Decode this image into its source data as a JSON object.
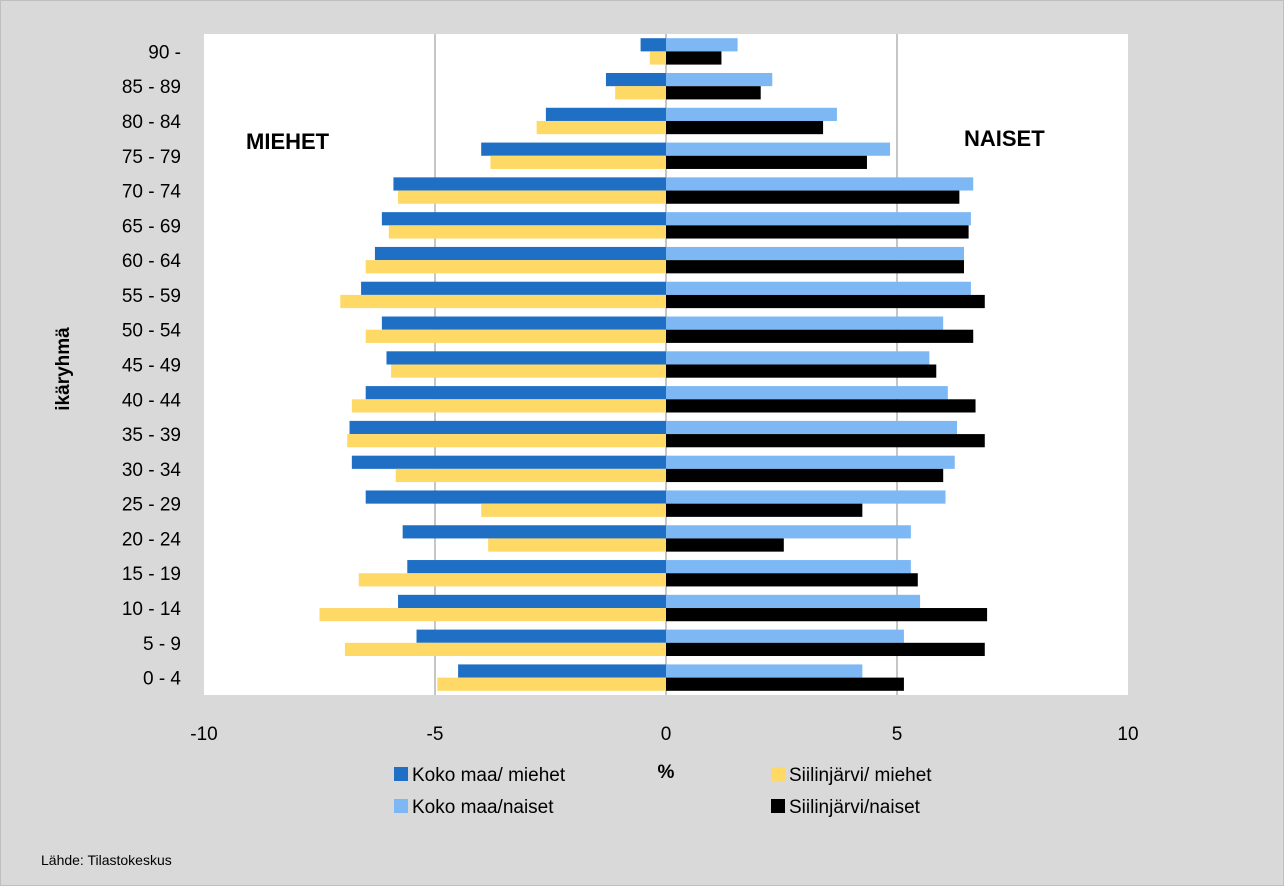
{
  "chart_data": {
    "type": "bar",
    "orientation": "horizontal",
    "categories": [
      "0 - 4",
      "5 - 9",
      "10 - 14",
      "15 - 19",
      "20 - 24",
      "25 - 29",
      "30 - 34",
      "35 - 39",
      "40 - 44",
      "45 - 49",
      "50 - 54",
      "55 - 59",
      "60 - 64",
      "65 - 69",
      "70 - 74",
      "75 - 79",
      "80 - 84",
      "85 - 89",
      "90 -"
    ],
    "series": [
      {
        "name": "Koko maa/ miehet",
        "color": "#1f6fc5",
        "values": [
          -4.5,
          -5.4,
          -5.8,
          -5.6,
          -5.7,
          -6.5,
          -6.8,
          -6.85,
          -6.5,
          -6.05,
          -6.15,
          -6.6,
          -6.3,
          -6.15,
          -5.9,
          -4.0,
          -2.6,
          -1.3,
          -0.55
        ]
      },
      {
        "name": "Siilinjärvi/ miehet",
        "color": "#ffd966",
        "values": [
          -4.95,
          -6.95,
          -7.5,
          -6.65,
          -3.85,
          -4.0,
          -5.85,
          -6.9,
          -6.8,
          -5.95,
          -6.5,
          -7.05,
          -6.5,
          -6.0,
          -5.8,
          -3.8,
          -2.8,
          -1.1,
          -0.35
        ]
      },
      {
        "name": "Koko maa/naiset",
        "color": "#7db8f5",
        "values": [
          4.25,
          5.15,
          5.5,
          5.3,
          5.3,
          6.05,
          6.25,
          6.3,
          6.1,
          5.7,
          6.0,
          6.6,
          6.45,
          6.6,
          6.65,
          4.85,
          3.7,
          2.3,
          1.55
        ]
      },
      {
        "name": "Siilinjärvi/naiset",
        "color": "#000000",
        "values": [
          5.15,
          6.9,
          6.95,
          5.45,
          2.55,
          4.25,
          6.0,
          6.9,
          6.7,
          5.85,
          6.65,
          6.9,
          6.45,
          6.55,
          6.35,
          4.35,
          3.4,
          2.05,
          1.2
        ]
      }
    ],
    "xlim": [
      -10,
      10
    ],
    "xticks": [
      -10,
      -5,
      0,
      5,
      10
    ],
    "xlabel": "%",
    "ylabel": "ikäryhmä",
    "annotations": {
      "left": "MIEHET",
      "right": "NAISET"
    },
    "grid": "vertical",
    "legend": "bottom"
  },
  "source": "Lähde: Tilastokeskus"
}
